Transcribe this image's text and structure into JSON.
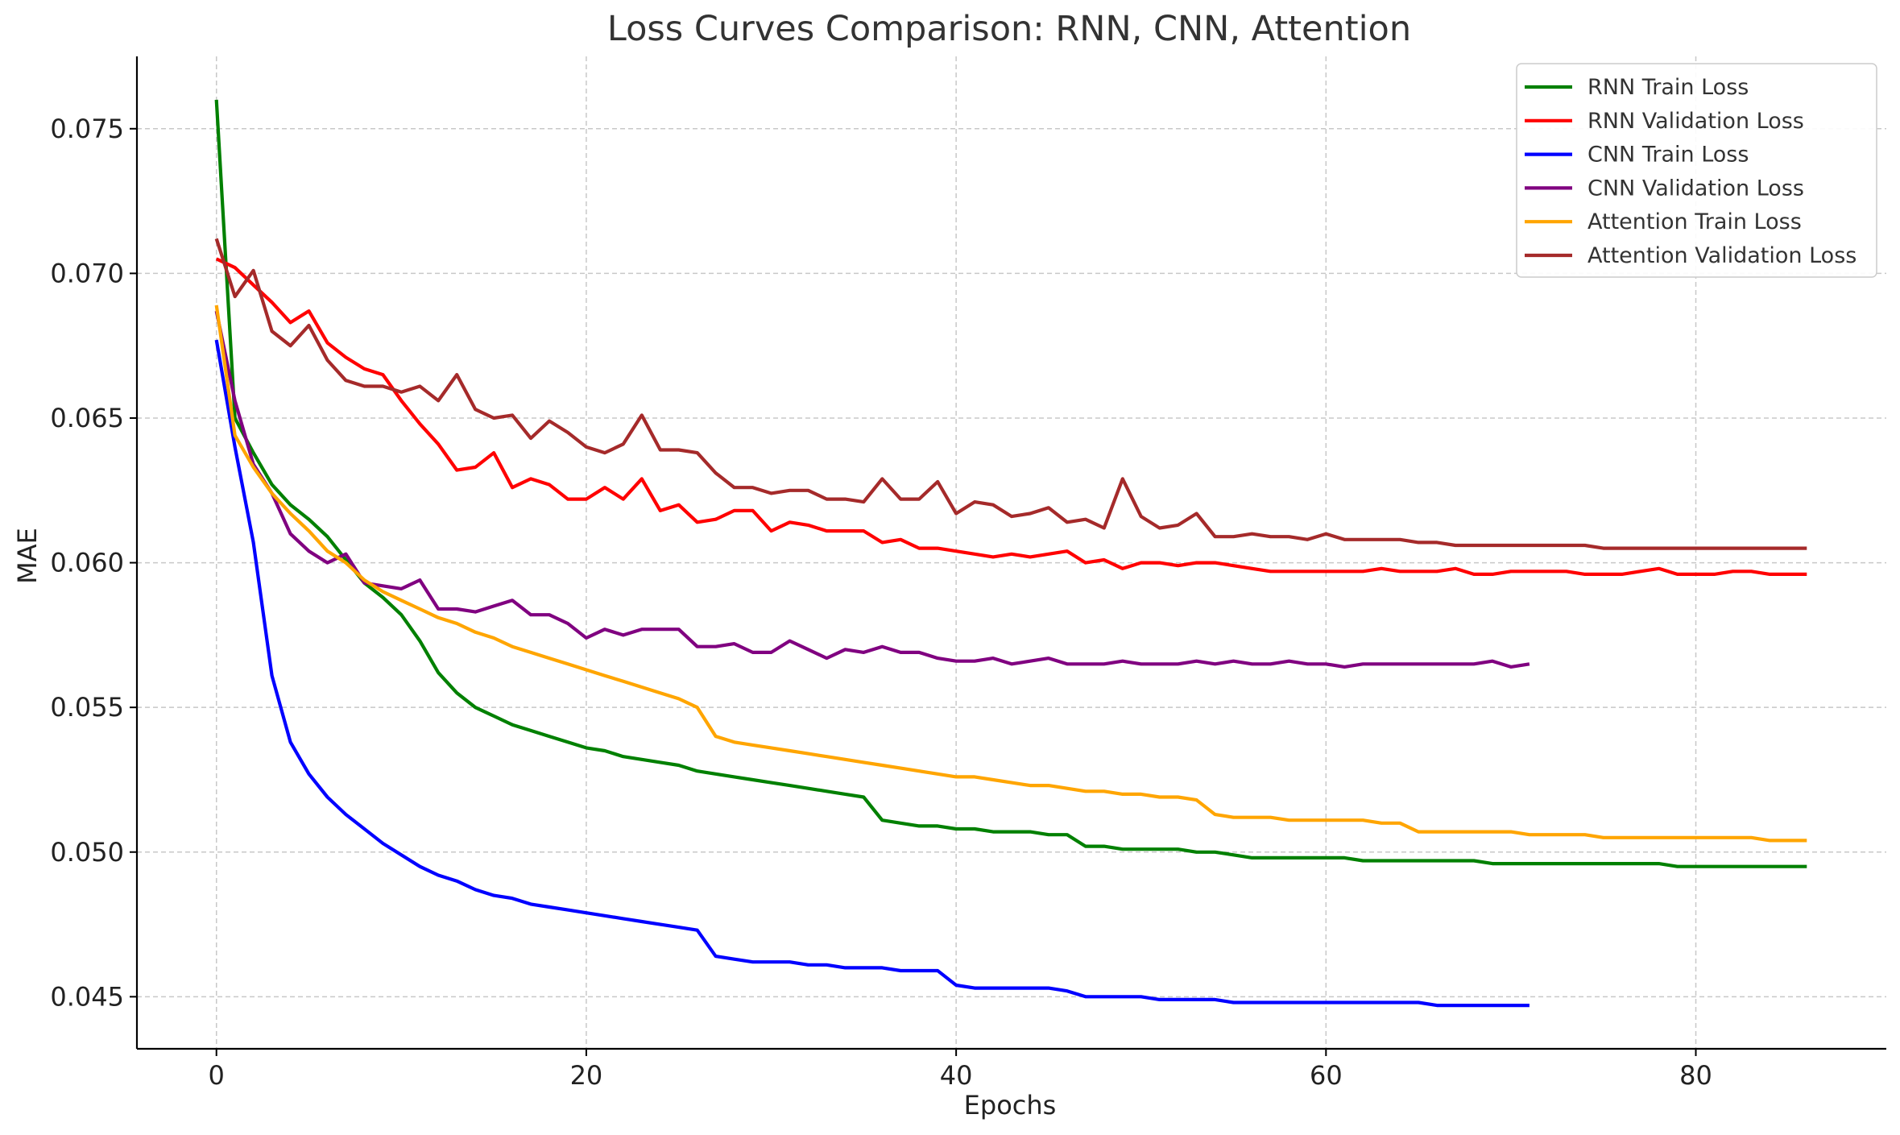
{
  "chart_data": {
    "type": "line",
    "title": "Loss Curves Comparison: RNN, CNN, Attention",
    "xlabel": "Epochs",
    "ylabel": "MAE",
    "xlim": [
      -4.3,
      90.3
    ],
    "ylim": [
      0.0432,
      0.0775
    ],
    "xticks": [
      0,
      20,
      40,
      60,
      80
    ],
    "xtick_labels": [
      "0",
      "20",
      "40",
      "60",
      "80"
    ],
    "yticks": [
      0.045,
      0.05,
      0.055,
      0.06,
      0.065,
      0.07,
      0.075
    ],
    "ytick_labels": [
      "0.045",
      "0.050",
      "0.055",
      "0.060",
      "0.065",
      "0.070",
      "0.075"
    ],
    "grid": true,
    "legend_position": "top-right",
    "series": [
      {
        "name": "RNN Train Loss",
        "color": "#008000",
        "x_start": 0,
        "values": [
          0.076,
          0.065,
          0.0638,
          0.0627,
          0.062,
          0.0615,
          0.0609,
          0.0601,
          0.0593,
          0.0588,
          0.0582,
          0.0573,
          0.0562,
          0.0555,
          0.055,
          0.0547,
          0.0544,
          0.0542,
          0.054,
          0.0538,
          0.0536,
          0.0535,
          0.0533,
          0.0532,
          0.0531,
          0.053,
          0.0528,
          0.0527,
          0.0526,
          0.0525,
          0.0524,
          0.0523,
          0.0522,
          0.0521,
          0.052,
          0.0519,
          0.0511,
          0.051,
          0.0509,
          0.0509,
          0.0508,
          0.0508,
          0.0507,
          0.0507,
          0.0507,
          0.0506,
          0.0506,
          0.0502,
          0.0502,
          0.0501,
          0.0501,
          0.0501,
          0.0501,
          0.05,
          0.05,
          0.0499,
          0.0498,
          0.0498,
          0.0498,
          0.0498,
          0.0498,
          0.0498,
          0.0497,
          0.0497,
          0.0497,
          0.0497,
          0.0497,
          0.0497,
          0.0497,
          0.0496,
          0.0496,
          0.0496,
          0.0496,
          0.0496,
          0.0496,
          0.0496,
          0.0496,
          0.0496,
          0.0496,
          0.0495,
          0.0495,
          0.0495,
          0.0495,
          0.0495,
          0.0495,
          0.0495,
          0.0495
        ]
      },
      {
        "name": "RNN Validation Loss",
        "color": "#ff0000",
        "x_start": 0,
        "values": [
          0.0705,
          0.0702,
          0.0696,
          0.069,
          0.0683,
          0.0687,
          0.0676,
          0.0671,
          0.0667,
          0.0665,
          0.0656,
          0.0648,
          0.0641,
          0.0632,
          0.0633,
          0.0638,
          0.0626,
          0.0629,
          0.0627,
          0.0622,
          0.0622,
          0.0626,
          0.0622,
          0.0629,
          0.0618,
          0.062,
          0.0614,
          0.0615,
          0.0618,
          0.0618,
          0.0611,
          0.0614,
          0.0613,
          0.0611,
          0.0611,
          0.0611,
          0.0607,
          0.0608,
          0.0605,
          0.0605,
          0.0604,
          0.0603,
          0.0602,
          0.0603,
          0.0602,
          0.0603,
          0.0604,
          0.06,
          0.0601,
          0.0598,
          0.06,
          0.06,
          0.0599,
          0.06,
          0.06,
          0.0599,
          0.0598,
          0.0597,
          0.0597,
          0.0597,
          0.0597,
          0.0597,
          0.0597,
          0.0598,
          0.0597,
          0.0597,
          0.0597,
          0.0598,
          0.0596,
          0.0596,
          0.0597,
          0.0597,
          0.0597,
          0.0597,
          0.0596,
          0.0596,
          0.0596,
          0.0597,
          0.0598,
          0.0596,
          0.0596,
          0.0596,
          0.0597,
          0.0597,
          0.0596,
          0.0596,
          0.0596
        ]
      },
      {
        "name": "CNN Train Loss",
        "color": "#0000ff",
        "x_start": 0,
        "values": [
          0.0677,
          0.064,
          0.0607,
          0.0561,
          0.0538,
          0.0527,
          0.0519,
          0.0513,
          0.0508,
          0.0503,
          0.0499,
          0.0495,
          0.0492,
          0.049,
          0.0487,
          0.0485,
          0.0484,
          0.0482,
          0.0481,
          0.048,
          0.0479,
          0.0478,
          0.0477,
          0.0476,
          0.0475,
          0.0474,
          0.0473,
          0.0464,
          0.0463,
          0.0462,
          0.0462,
          0.0462,
          0.0461,
          0.0461,
          0.046,
          0.046,
          0.046,
          0.0459,
          0.0459,
          0.0459,
          0.0454,
          0.0453,
          0.0453,
          0.0453,
          0.0453,
          0.0453,
          0.0452,
          0.045,
          0.045,
          0.045,
          0.045,
          0.0449,
          0.0449,
          0.0449,
          0.0449,
          0.0448,
          0.0448,
          0.0448,
          0.0448,
          0.0448,
          0.0448,
          0.0448,
          0.0448,
          0.0448,
          0.0448,
          0.0448,
          0.0447,
          0.0447,
          0.0447,
          0.0447,
          0.0447,
          0.0447
        ]
      },
      {
        "name": "CNN Validation Loss",
        "color": "#800080",
        "x_start": 0,
        "values": [
          0.0687,
          0.0656,
          0.0634,
          0.0624,
          0.061,
          0.0604,
          0.06,
          0.0603,
          0.0593,
          0.0592,
          0.0591,
          0.0594,
          0.0584,
          0.0584,
          0.0583,
          0.0585,
          0.0587,
          0.0582,
          0.0582,
          0.0579,
          0.0574,
          0.0577,
          0.0575,
          0.0577,
          0.0577,
          0.0577,
          0.0571,
          0.0571,
          0.0572,
          0.0569,
          0.0569,
          0.0573,
          0.057,
          0.0567,
          0.057,
          0.0569,
          0.0571,
          0.0569,
          0.0569,
          0.0567,
          0.0566,
          0.0566,
          0.0567,
          0.0565,
          0.0566,
          0.0567,
          0.0565,
          0.0565,
          0.0565,
          0.0566,
          0.0565,
          0.0565,
          0.0565,
          0.0566,
          0.0565,
          0.0566,
          0.0565,
          0.0565,
          0.0566,
          0.0565,
          0.0565,
          0.0564,
          0.0565,
          0.0565,
          0.0565,
          0.0565,
          0.0565,
          0.0565,
          0.0565,
          0.0566,
          0.0564,
          0.0565
        ]
      },
      {
        "name": "Attention Train Loss",
        "color": "#ffa500",
        "x_start": 0,
        "values": [
          0.0689,
          0.0644,
          0.0633,
          0.0624,
          0.0617,
          0.0611,
          0.0604,
          0.06,
          0.0594,
          0.059,
          0.0587,
          0.0584,
          0.0581,
          0.0579,
          0.0576,
          0.0574,
          0.0571,
          0.0569,
          0.0567,
          0.0565,
          0.0563,
          0.0561,
          0.0559,
          0.0557,
          0.0555,
          0.0553,
          0.055,
          0.054,
          0.0538,
          0.0537,
          0.0536,
          0.0535,
          0.0534,
          0.0533,
          0.0532,
          0.0531,
          0.053,
          0.0529,
          0.0528,
          0.0527,
          0.0526,
          0.0526,
          0.0525,
          0.0524,
          0.0523,
          0.0523,
          0.0522,
          0.0521,
          0.0521,
          0.052,
          0.052,
          0.0519,
          0.0519,
          0.0518,
          0.0513,
          0.0512,
          0.0512,
          0.0512,
          0.0511,
          0.0511,
          0.0511,
          0.0511,
          0.0511,
          0.051,
          0.051,
          0.0507,
          0.0507,
          0.0507,
          0.0507,
          0.0507,
          0.0507,
          0.0506,
          0.0506,
          0.0506,
          0.0506,
          0.0505,
          0.0505,
          0.0505,
          0.0505,
          0.0505,
          0.0505,
          0.0505,
          0.0505,
          0.0505,
          0.0504,
          0.0504,
          0.0504
        ]
      },
      {
        "name": "Attention Validation Loss",
        "color": "#a52a2a",
        "x_start": 0,
        "values": [
          0.0712,
          0.0692,
          0.0701,
          0.068,
          0.0675,
          0.0682,
          0.067,
          0.0663,
          0.0661,
          0.0661,
          0.0659,
          0.0661,
          0.0656,
          0.0665,
          0.0653,
          0.065,
          0.0651,
          0.0643,
          0.0649,
          0.0645,
          0.064,
          0.0638,
          0.0641,
          0.0651,
          0.0639,
          0.0639,
          0.0638,
          0.0631,
          0.0626,
          0.0626,
          0.0624,
          0.0625,
          0.0625,
          0.0622,
          0.0622,
          0.0621,
          0.0629,
          0.0622,
          0.0622,
          0.0628,
          0.0617,
          0.0621,
          0.062,
          0.0616,
          0.0617,
          0.0619,
          0.0614,
          0.0615,
          0.0612,
          0.0629,
          0.0616,
          0.0612,
          0.0613,
          0.0617,
          0.0609,
          0.0609,
          0.061,
          0.0609,
          0.0609,
          0.0608,
          0.061,
          0.0608,
          0.0608,
          0.0608,
          0.0608,
          0.0607,
          0.0607,
          0.0606,
          0.0606,
          0.0606,
          0.0606,
          0.0606,
          0.0606,
          0.0606,
          0.0606,
          0.0605,
          0.0605,
          0.0605,
          0.0605,
          0.0605,
          0.0605,
          0.0605,
          0.0605,
          0.0605,
          0.0605,
          0.0605,
          0.0605
        ]
      }
    ]
  }
}
